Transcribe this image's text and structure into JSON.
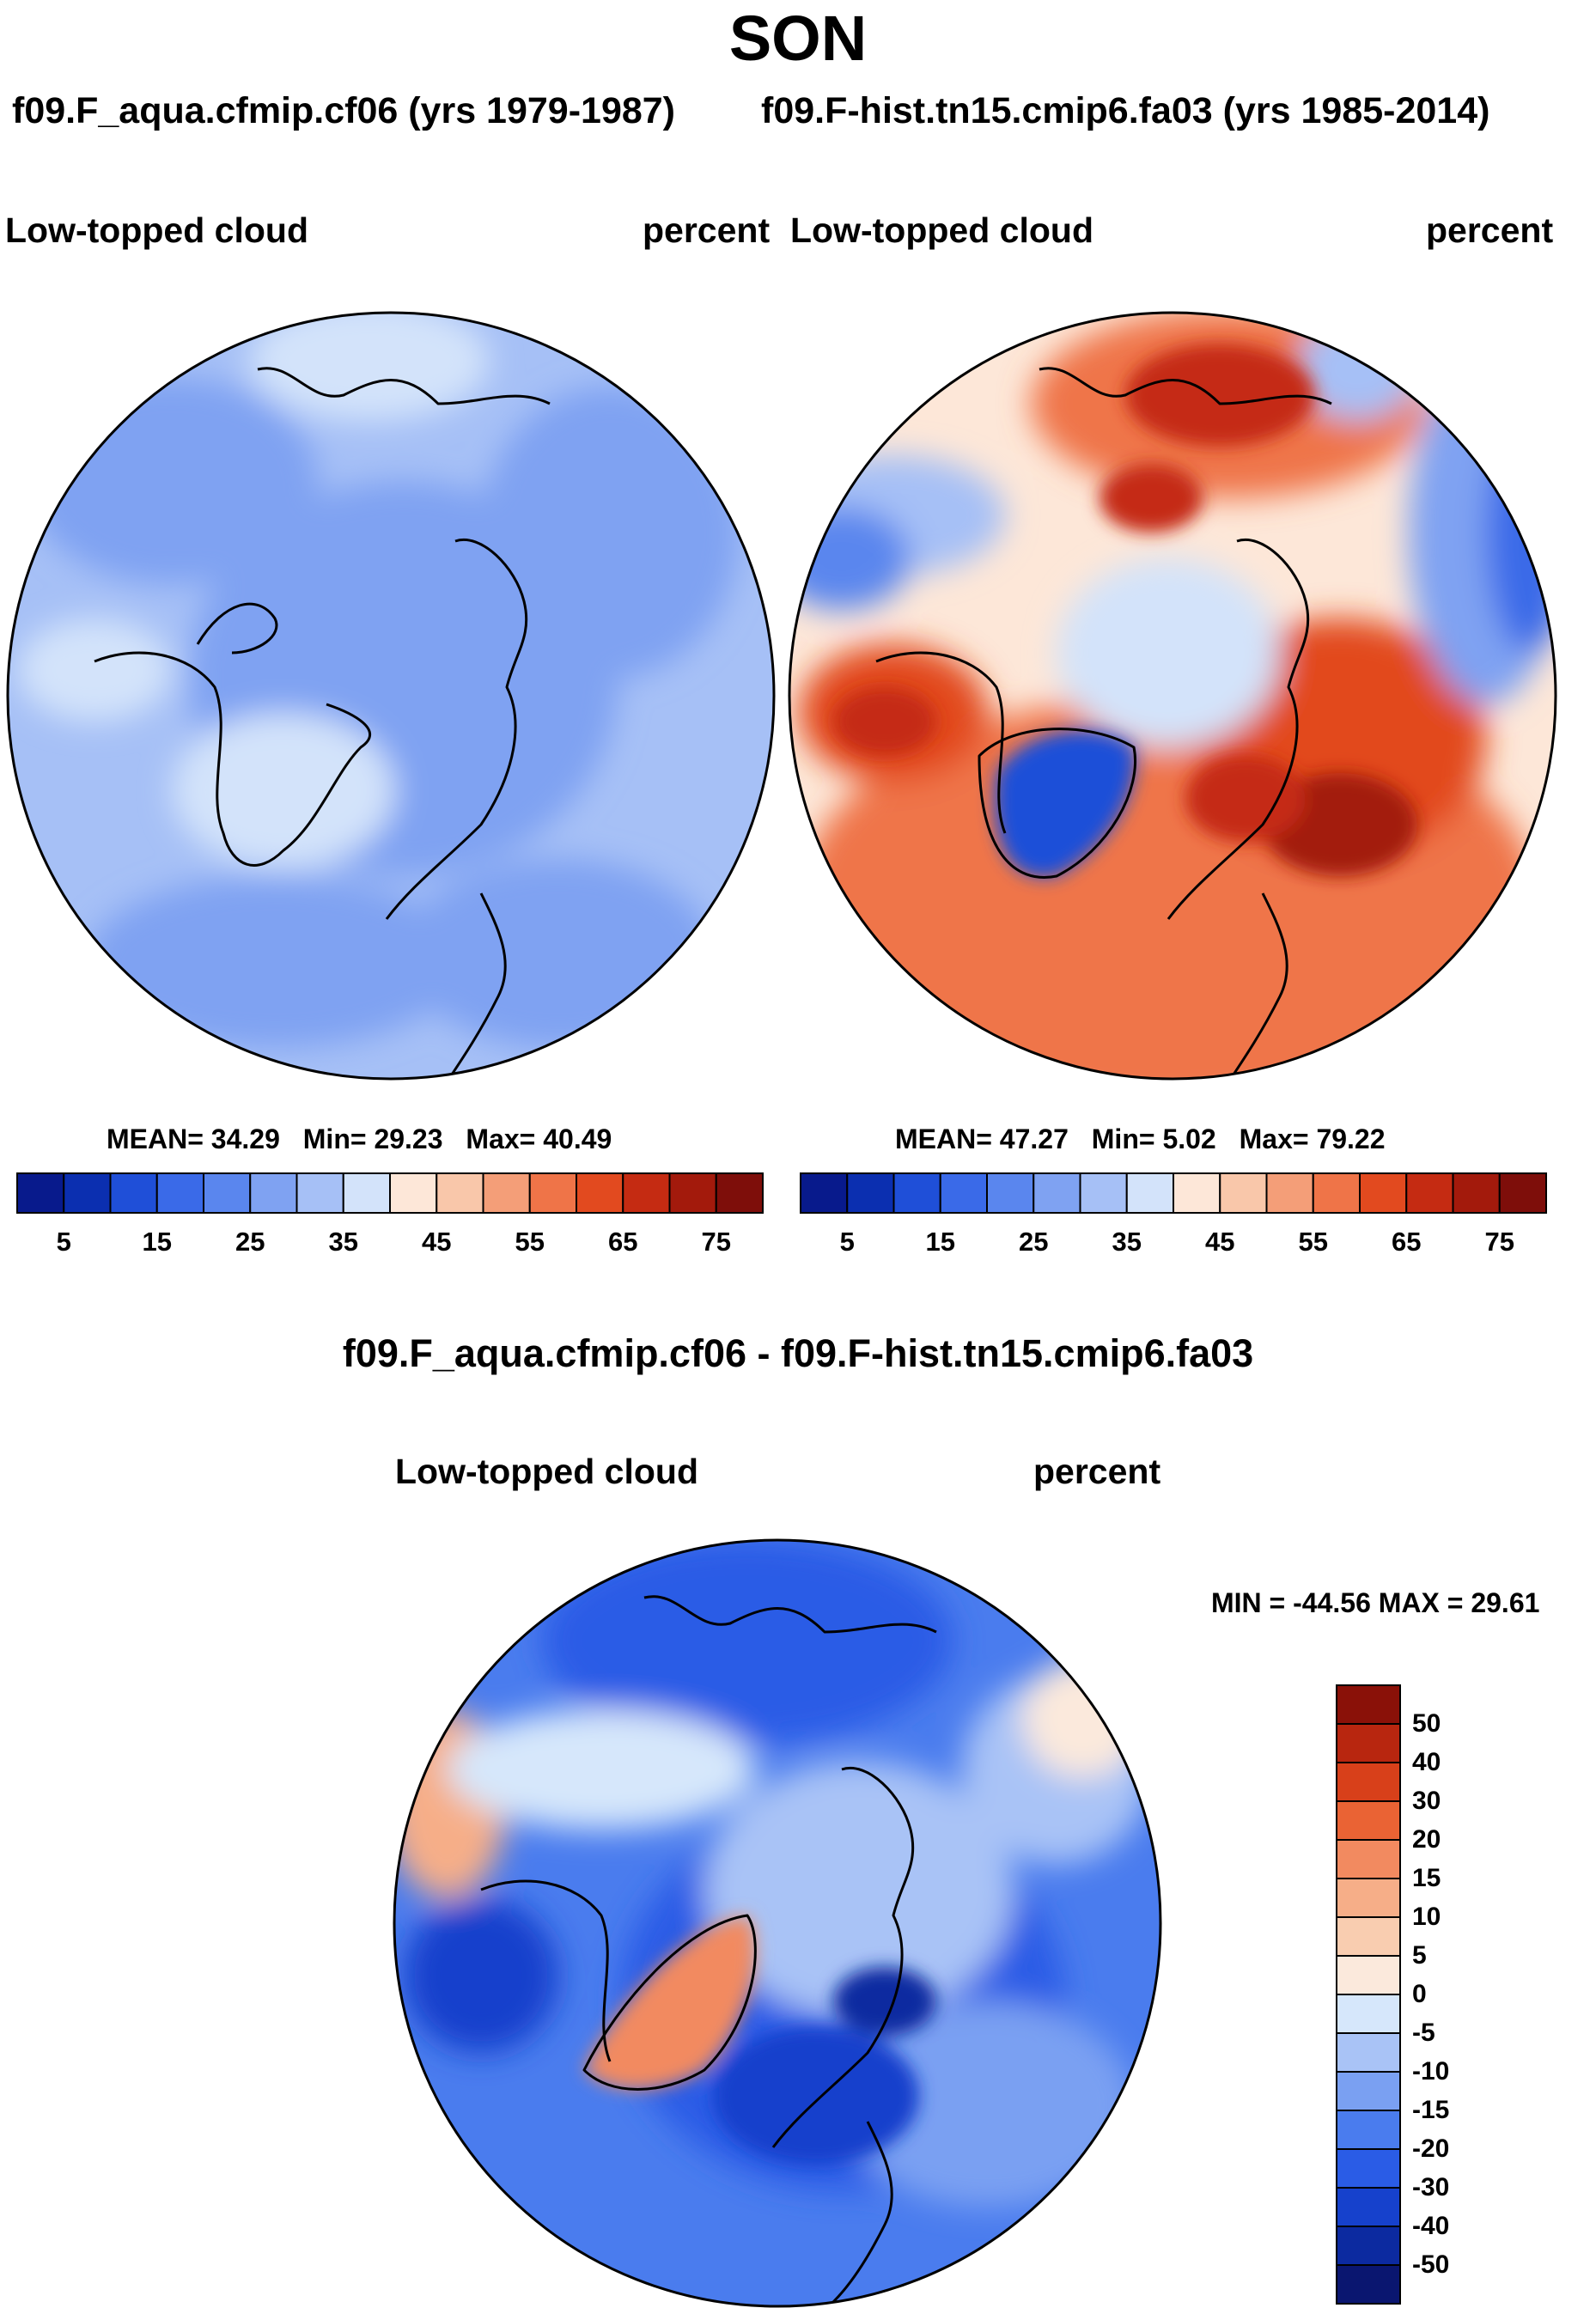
{
  "figure_title": "SON",
  "panels": {
    "left": {
      "run_title": "f09.F_aqua.cfmip.cf06 (yrs 1979-1987)",
      "variable": "Low-topped cloud",
      "units": "percent",
      "mean_label": "MEAN=",
      "mean": "34.29",
      "min_label": "Min=",
      "min": "29.23",
      "max_label": "Max=",
      "max": "40.49"
    },
    "right": {
      "run_title": "f09.F-hist.tn15.cmip6.fa03 (yrs 1985-2014)",
      "variable": "Low-topped cloud",
      "units": "percent",
      "mean_label": "MEAN=",
      "mean": "47.27",
      "min_label": "Min=",
      "min": "5.02",
      "max_label": "Max=",
      "max": "79.22"
    },
    "diff": {
      "title": "f09.F_aqua.cfmip.cf06 - f09.F-hist.tn15.cmip6.fa03",
      "variable": "Low-topped cloud",
      "units": "percent",
      "minmax_text": "MIN = -44.56 MAX =  29.61"
    }
  },
  "chart_data": [
    {
      "type": "heatmap",
      "projection": "north polar stereographic",
      "title": "f09.F_aqua.cfmip.cf06 (yrs 1979-1987)",
      "field": "Low-topped cloud",
      "units": "percent",
      "mean": 34.29,
      "min": 29.23,
      "max": 40.49,
      "colorbar_ticks": [
        "5",
        "15",
        "25",
        "35",
        "45",
        "55",
        "65",
        "75"
      ],
      "levels": [
        0,
        5,
        10,
        15,
        20,
        25,
        30,
        35,
        40,
        45,
        50,
        55,
        60,
        65,
        70,
        75,
        80
      ]
    },
    {
      "type": "heatmap",
      "projection": "north polar stereographic",
      "title": "f09.F-hist.tn15.cmip6.fa03 (yrs 1985-2014)",
      "field": "Low-topped cloud",
      "units": "percent",
      "mean": 47.27,
      "min": 5.02,
      "max": 79.22,
      "colorbar_ticks": [
        "5",
        "15",
        "25",
        "35",
        "45",
        "55",
        "65",
        "75"
      ],
      "levels": [
        0,
        5,
        10,
        15,
        20,
        25,
        30,
        35,
        40,
        45,
        50,
        55,
        60,
        65,
        70,
        75,
        80
      ]
    },
    {
      "type": "heatmap",
      "projection": "north polar stereographic",
      "title": "f09.F_aqua.cfmip.cf06 - f09.F-hist.tn15.cmip6.fa03",
      "field": "Low-topped cloud",
      "units": "percent",
      "min": -44.56,
      "max": 29.61,
      "colorbar_ticks": [
        "50",
        "40",
        "30",
        "20",
        "15",
        "10",
        "5",
        "0",
        "-5",
        "-10",
        "-15",
        "-20",
        "-30",
        "-40",
        "-50"
      ],
      "levels": [
        -60,
        -50,
        -40,
        -30,
        -20,
        -15,
        -10,
        -5,
        0,
        5,
        10,
        15,
        20,
        30,
        40,
        50,
        60
      ]
    }
  ],
  "colors": {
    "abs_scale": [
      "#081a8c",
      "#0b2fb0",
      "#1f4fd8",
      "#3a6ae8",
      "#5a86ee",
      "#7fa2f2",
      "#a6c0f6",
      "#d3e3fa",
      "#fde7d8",
      "#f9c7aa",
      "#f49e78",
      "#ef7448",
      "#e24a1f",
      "#c52b12",
      "#a31a0c",
      "#7e0e0a"
    ],
    "diff_scale": [
      "#0a1670",
      "#0c2aa0",
      "#1641cc",
      "#2a5ce6",
      "#4a7cee",
      "#7aa0f2",
      "#a9c3f6",
      "#d6e7fb",
      "#fbe9dc",
      "#f9cdb0",
      "#f6ae88",
      "#f28a60",
      "#ea6334",
      "#d8401a",
      "#b8260f",
      "#8a1108"
    ]
  }
}
